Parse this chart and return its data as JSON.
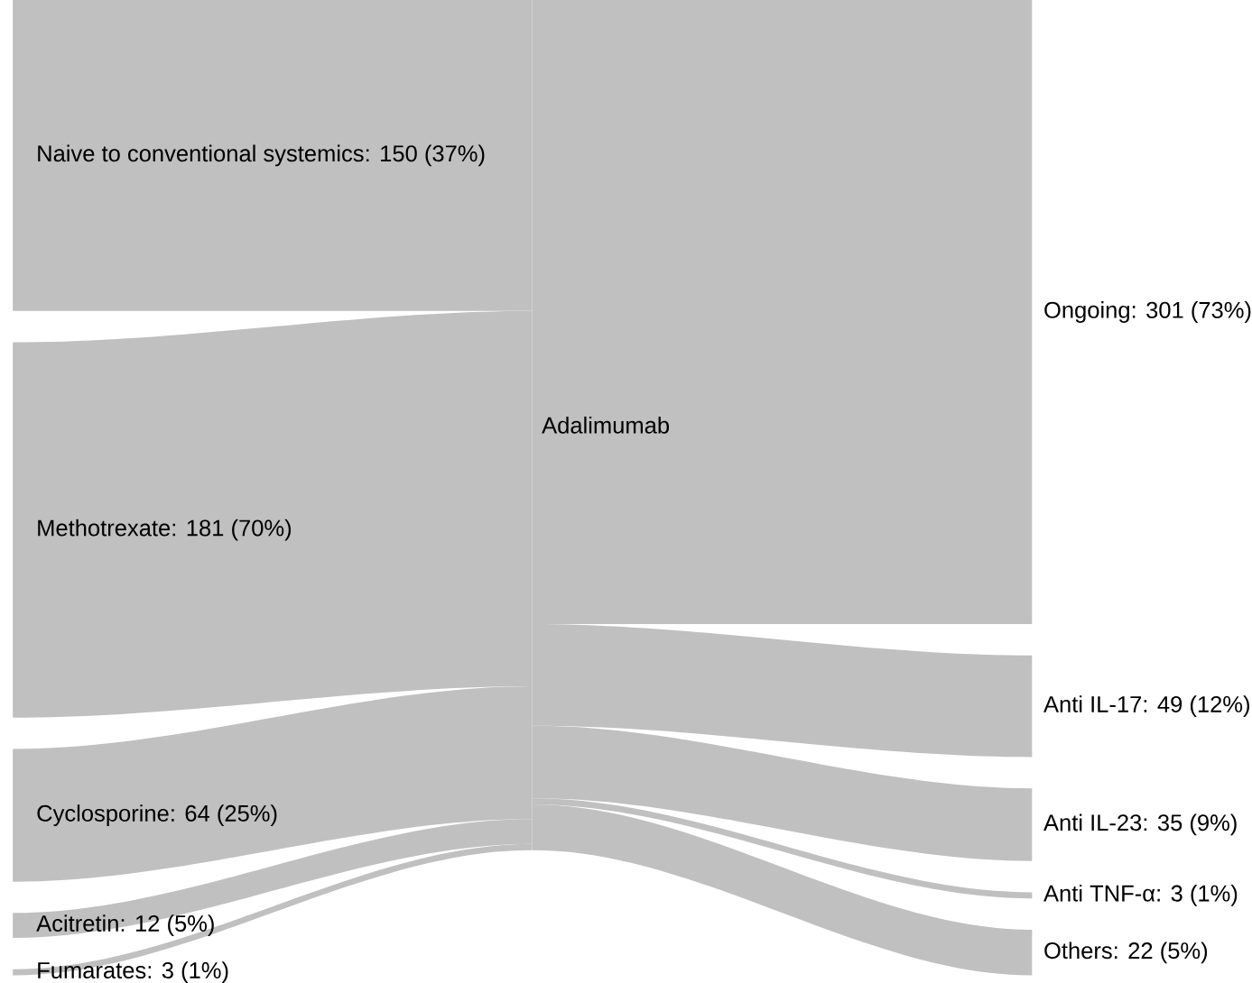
{
  "chart_data": {
    "type": "other",
    "categories": [
      "Naive to conventional systemics",
      "Methotrexate",
      "Cyclosporine",
      "Acitretin",
      "Fumarates",
      "Ongoing",
      "Anti IL-17",
      "Anti IL-23",
      "Anti TNF-α",
      "Others"
    ],
    "series": [
      {
        "color": "#c0c0c0",
        "values": [
          150,
          181,
          64,
          12,
          3,
          null,
          null,
          null,
          null,
          null
        ],
        "value_labels": [
          ": 150 (37%)",
          ": 181 (70%)",
          ": 64 (25%)",
          ": 12 (5%)",
          ": 3 (1%)",
          null,
          null,
          null,
          null,
          null
        ]
      },
      {
        "color": "#c0c0c0",
        "values": [
          null,
          null,
          null,
          null,
          null,
          301,
          49,
          35,
          3,
          22
        ],
        "value_labels": [
          null,
          null,
          null,
          null,
          null,
          ": 301 (73%)",
          ": 49 (12%)",
          ": 35 (9%)",
          ": 3 (1%)",
          ": 22 (5%)"
        ]
      }
    ],
    "annotations": [
      "Adalimumab"
    ]
  }
}
